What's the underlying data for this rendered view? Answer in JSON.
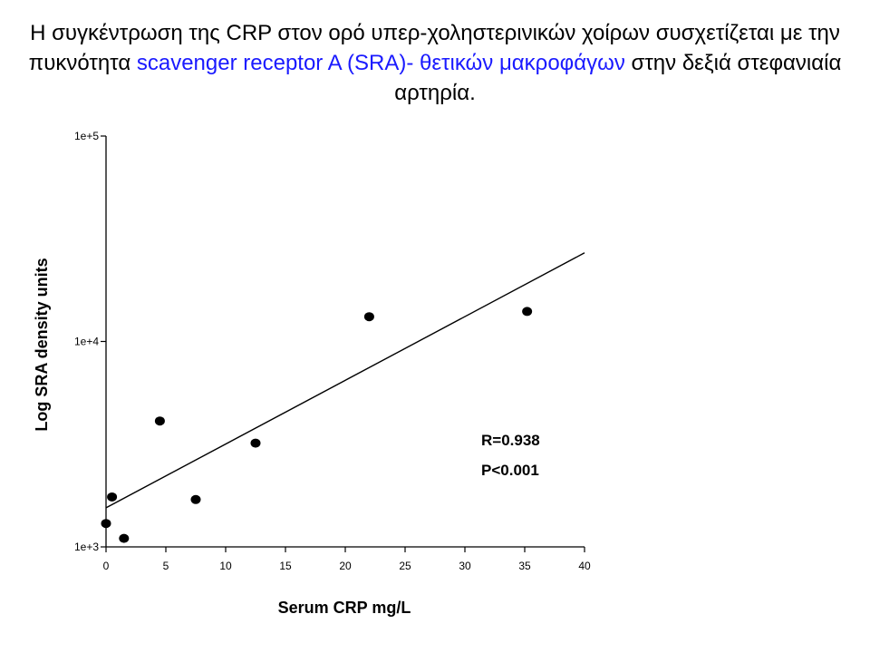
{
  "slide": {
    "title_part1": "Η συγκέντρωση της CRP στον ορό υπερ-χοληστερινικών χοίρων συσχετίζεται με την πυκνότητα ",
    "title_highlight": "scavenger receptor A (SRA)- θετικών μακροφάγων",
    "title_part2": " στην δεξιά στεφανιαία αρτηρία.",
    "highlight_color": "#1a1aff"
  },
  "chart_data": {
    "type": "scatter",
    "xlabel": "Serum CRP mg/L",
    "ylabel": "Log SRA density units",
    "xlim": [
      0,
      40
    ],
    "ylim": [
      1000,
      100000
    ],
    "yscale": "log",
    "x_ticks": [
      0,
      5,
      10,
      15,
      20,
      25,
      30,
      35,
      40
    ],
    "y_ticks": [
      1000,
      10000,
      100000
    ],
    "y_tick_labels": [
      "1e+3",
      "1e+4",
      "1e+5"
    ],
    "points": [
      {
        "x": 0.0,
        "y": 1300
      },
      {
        "x": 0.5,
        "y": 1750
      },
      {
        "x": 1.5,
        "y": 1100
      },
      {
        "x": 4.5,
        "y": 4100
      },
      {
        "x": 7.5,
        "y": 1700
      },
      {
        "x": 12.5,
        "y": 3200
      },
      {
        "x": 22.0,
        "y": 13200
      },
      {
        "x": 35.2,
        "y": 14000
      }
    ],
    "fit_line": {
      "x": [
        0,
        40
      ],
      "y": [
        1550,
        27000
      ]
    },
    "annotations": [
      "R=0.938",
      "P<0.001"
    ],
    "grid": false,
    "legend": "none"
  }
}
